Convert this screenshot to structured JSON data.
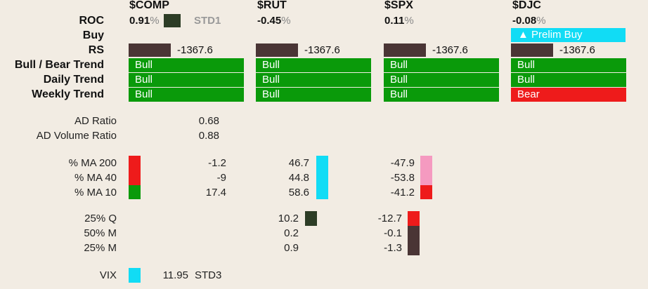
{
  "labels": {
    "roc": "ROC",
    "buy": "Buy",
    "rs": "RS",
    "bull_bear_trend": "Bull / Bear Trend",
    "daily_trend": "Daily Trend",
    "weekly_trend": "Weekly Trend",
    "ad_ratio": "AD Ratio",
    "ad_volume_ratio": "AD Volume Ratio",
    "ma200": "% MA 200",
    "ma40": "% MA 40",
    "ma10": "% MA 10",
    "q25": "25% Q",
    "m50": "50% M",
    "m25": "25% M",
    "vix": "VIX"
  },
  "columns": [
    {
      "ticker": "$COMP",
      "roc": "0.91",
      "roc_unit": "%",
      "roc_tag": "STD1",
      "rs": "-1367.6",
      "trend": "Bull",
      "daily": "Bull",
      "weekly": "Bull"
    },
    {
      "ticker": "$RUT",
      "roc": "-0.45",
      "roc_unit": "%",
      "rs": "-1367.6",
      "trend": "Bull",
      "daily": "Bull",
      "weekly": "Bull"
    },
    {
      "ticker": "$SPX",
      "roc": "0.11",
      "roc_unit": "%",
      "rs": "-1367.6",
      "trend": "Bull",
      "daily": "Bull",
      "weekly": "Bull"
    },
    {
      "ticker": "$DJC",
      "roc": "-0.08",
      "roc_unit": "%",
      "buy": "▲ Prelim Buy",
      "rs": "-1367.6",
      "trend": "Bull",
      "daily": "Bull",
      "weekly": "Bear"
    }
  ],
  "breadth": {
    "ad_ratio": "0.68",
    "ad_volume_ratio": "0.88"
  },
  "ma": {
    "comp": {
      "ma200": "-1.2",
      "ma40": "-9",
      "ma10": "17.4"
    },
    "rut": {
      "ma200": "46.7",
      "ma40": "44.8",
      "ma10": "58.6"
    },
    "spx": {
      "ma200": "-47.9",
      "ma40": "-53.8",
      "ma10": "-41.2"
    }
  },
  "rates": {
    "rut": {
      "q25": "10.2",
      "m50": "0.2",
      "m25": "0.9"
    },
    "spx": {
      "q25": "-12.7",
      "m50": "-0.1",
      "m25": "-1.3"
    }
  },
  "vix": {
    "value": "11.95",
    "tag": "STD3"
  },
  "colors": {
    "bull": "#0a9a0a",
    "bear": "#ee1b1b",
    "cyan": "#11dcf5",
    "dark_green": "#2d3d26",
    "dark_brown": "#4a3535",
    "pink": "#f59ac0",
    "red": "#ee1b1b"
  }
}
